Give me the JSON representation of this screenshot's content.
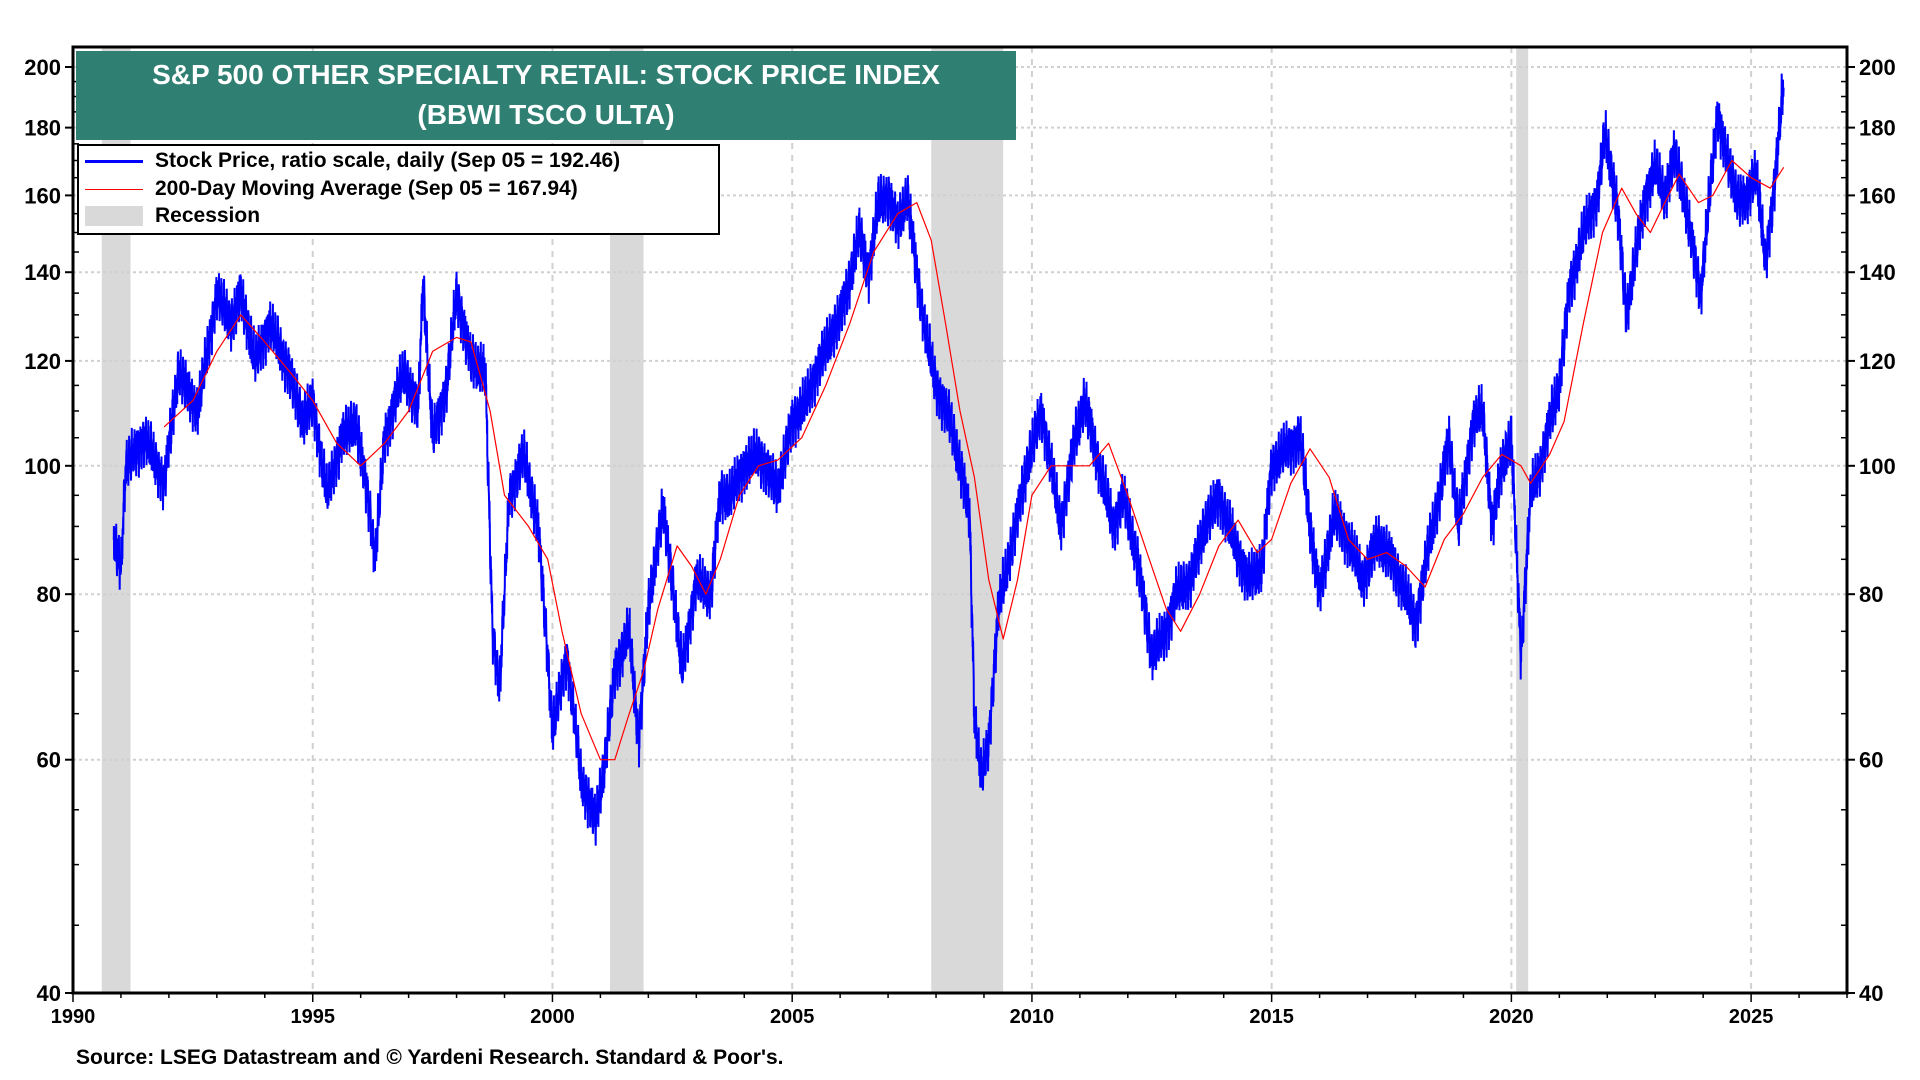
{
  "chart_data": {
    "type": "line",
    "title": "S&P 500 OTHER SPECIALTY RETAIL: STOCK PRICE INDEX",
    "subtitle": "(BBWI TSCO ULTA)",
    "y_scale": "log",
    "ylim": [
      40,
      200
    ],
    "xlim": [
      1990,
      2027
    ],
    "y_ticks": [
      40,
      60,
      80,
      100,
      120,
      140,
      160,
      180,
      200
    ],
    "x_ticks": [
      1990,
      1995,
      2000,
      2005,
      2010,
      2015,
      2020,
      2025
    ],
    "grid": true,
    "legend_position": "top-left",
    "legend": [
      {
        "label": "Stock Price, ratio scale, daily (Sep 05 = 192.46)",
        "color": "#0000ff"
      },
      {
        "label": "200-Day Moving Average (Sep 05 = 167.94)",
        "color": "#ff0000"
      },
      {
        "label": "Recession",
        "color": "#d9d9d9"
      }
    ],
    "recessions": [
      [
        1990.6,
        1991.2
      ],
      [
        2001.2,
        2001.9
      ],
      [
        2007.9,
        2009.4
      ],
      [
        2020.1,
        2020.35
      ]
    ],
    "series": [
      {
        "name": "Stock Price",
        "color": "#0000ff",
        "points": [
          [
            1990.85,
            88
          ],
          [
            1991.0,
            84
          ],
          [
            1991.1,
            100
          ],
          [
            1991.5,
            105
          ],
          [
            1991.9,
            97
          ],
          [
            1992.2,
            118
          ],
          [
            1992.6,
            110
          ],
          [
            1993.0,
            135
          ],
          [
            1993.3,
            128
          ],
          [
            1993.5,
            135
          ],
          [
            1993.8,
            120
          ],
          [
            1994.1,
            128
          ],
          [
            1994.5,
            118
          ],
          [
            1994.8,
            108
          ],
          [
            1995.0,
            112
          ],
          [
            1995.3,
            95
          ],
          [
            1995.6,
            105
          ],
          [
            1995.9,
            108
          ],
          [
            1996.2,
            92
          ],
          [
            1996.3,
            85
          ],
          [
            1996.5,
            105
          ],
          [
            1996.9,
            118
          ],
          [
            1997.2,
            110
          ],
          [
            1997.3,
            138
          ],
          [
            1997.5,
            105
          ],
          [
            1997.8,
            115
          ],
          [
            1998.0,
            135
          ],
          [
            1998.3,
            120
          ],
          [
            1998.6,
            118
          ],
          [
            1998.75,
            75
          ],
          [
            1998.9,
            68
          ],
          [
            1999.1,
            95
          ],
          [
            1999.4,
            102
          ],
          [
            1999.7,
            90
          ],
          [
            1999.9,
            72
          ],
          [
            2000.0,
            63
          ],
          [
            2000.3,
            72
          ],
          [
            2000.6,
            58
          ],
          [
            2000.9,
            54
          ],
          [
            2001.1,
            60
          ],
          [
            2001.3,
            70
          ],
          [
            2001.6,
            75
          ],
          [
            2001.8,
            62
          ],
          [
            2002.0,
            78
          ],
          [
            2002.3,
            93
          ],
          [
            2002.5,
            82
          ],
          [
            2002.7,
            70
          ],
          [
            2003.0,
            82
          ],
          [
            2003.3,
            80
          ],
          [
            2003.5,
            95
          ],
          [
            2003.7,
            95
          ],
          [
            2004.0,
            100
          ],
          [
            2004.3,
            102
          ],
          [
            2004.7,
            96
          ],
          [
            2005.0,
            108
          ],
          [
            2005.3,
            112
          ],
          [
            2005.5,
            118
          ],
          [
            2005.8,
            125
          ],
          [
            2006.0,
            130
          ],
          [
            2006.2,
            138
          ],
          [
            2006.4,
            150
          ],
          [
            2006.6,
            140
          ],
          [
            2006.8,
            158
          ],
          [
            2007.0,
            160
          ],
          [
            2007.2,
            152
          ],
          [
            2007.4,
            160
          ],
          [
            2007.6,
            140
          ],
          [
            2007.8,
            125
          ],
          [
            2008.0,
            115
          ],
          [
            2008.3,
            108
          ],
          [
            2008.5,
            100
          ],
          [
            2008.7,
            92
          ],
          [
            2008.8,
            65
          ],
          [
            2008.95,
            58
          ],
          [
            2009.1,
            62
          ],
          [
            2009.3,
            78
          ],
          [
            2009.6,
            88
          ],
          [
            2009.9,
            100
          ],
          [
            2010.2,
            110
          ],
          [
            2010.4,
            100
          ],
          [
            2010.6,
            90
          ],
          [
            2010.9,
            105
          ],
          [
            2011.1,
            112
          ],
          [
            2011.4,
            100
          ],
          [
            2011.7,
            90
          ],
          [
            2011.9,
            95
          ],
          [
            2012.2,
            85
          ],
          [
            2012.5,
            72
          ],
          [
            2012.8,
            75
          ],
          [
            2013.0,
            80
          ],
          [
            2013.3,
            82
          ],
          [
            2013.6,
            90
          ],
          [
            2013.9,
            95
          ],
          [
            2014.2,
            88
          ],
          [
            2014.5,
            82
          ],
          [
            2014.8,
            84
          ],
          [
            2015.0,
            100
          ],
          [
            2015.3,
            103
          ],
          [
            2015.6,
            105
          ],
          [
            2015.8,
            90
          ],
          [
            2016.0,
            80
          ],
          [
            2016.3,
            92
          ],
          [
            2016.6,
            88
          ],
          [
            2016.9,
            82
          ],
          [
            2017.2,
            88
          ],
          [
            2017.5,
            85
          ],
          [
            2017.8,
            80
          ],
          [
            2018.0,
            76
          ],
          [
            2018.3,
            88
          ],
          [
            2018.5,
            95
          ],
          [
            2018.7,
            105
          ],
          [
            2018.9,
            90
          ],
          [
            2019.2,
            108
          ],
          [
            2019.4,
            110
          ],
          [
            2019.6,
            90
          ],
          [
            2019.8,
            100
          ],
          [
            2020.0,
            105
          ],
          [
            2020.2,
            72
          ],
          [
            2020.4,
            95
          ],
          [
            2020.6,
            100
          ],
          [
            2020.8,
            108
          ],
          [
            2021.0,
            115
          ],
          [
            2021.2,
            135
          ],
          [
            2021.5,
            150
          ],
          [
            2021.8,
            160
          ],
          [
            2021.95,
            178
          ],
          [
            2022.2,
            158
          ],
          [
            2022.4,
            130
          ],
          [
            2022.6,
            145
          ],
          [
            2022.8,
            160
          ],
          [
            2023.0,
            168
          ],
          [
            2023.2,
            160
          ],
          [
            2023.4,
            172
          ],
          [
            2023.6,
            160
          ],
          [
            2023.8,
            145
          ],
          [
            2023.95,
            135
          ],
          [
            2024.1,
            155
          ],
          [
            2024.3,
            185
          ],
          [
            2024.5,
            170
          ],
          [
            2024.7,
            160
          ],
          [
            2024.9,
            158
          ],
          [
            2025.1,
            168
          ],
          [
            2025.3,
            142
          ],
          [
            2025.5,
            165
          ],
          [
            2025.68,
            195
          ]
        ]
      },
      {
        "name": "200-Day Moving Average",
        "color": "#ff0000",
        "points": [
          [
            1991.9,
            107
          ],
          [
            1992.5,
            112
          ],
          [
            1993.0,
            122
          ],
          [
            1993.5,
            130
          ],
          [
            1994.0,
            124
          ],
          [
            1994.5,
            118
          ],
          [
            1995.0,
            112
          ],
          [
            1995.5,
            104
          ],
          [
            1996.0,
            100
          ],
          [
            1996.5,
            104
          ],
          [
            1997.0,
            110
          ],
          [
            1997.5,
            122
          ],
          [
            1998.0,
            125
          ],
          [
            1998.3,
            124
          ],
          [
            1998.7,
            110
          ],
          [
            1999.0,
            95
          ],
          [
            1999.5,
            90
          ],
          [
            1999.9,
            85
          ],
          [
            2000.2,
            75
          ],
          [
            2000.6,
            65
          ],
          [
            2001.0,
            60
          ],
          [
            2001.3,
            60
          ],
          [
            2001.6,
            65
          ],
          [
            2001.9,
            70
          ],
          [
            2002.2,
            78
          ],
          [
            2002.6,
            87
          ],
          [
            2002.9,
            84
          ],
          [
            2003.2,
            80
          ],
          [
            2003.5,
            85
          ],
          [
            2003.9,
            95
          ],
          [
            2004.3,
            100
          ],
          [
            2004.7,
            101
          ],
          [
            2005.2,
            105
          ],
          [
            2005.7,
            115
          ],
          [
            2006.2,
            128
          ],
          [
            2006.7,
            145
          ],
          [
            2007.2,
            155
          ],
          [
            2007.6,
            158
          ],
          [
            2007.9,
            148
          ],
          [
            2008.2,
            128
          ],
          [
            2008.5,
            110
          ],
          [
            2008.8,
            98
          ],
          [
            2009.1,
            82
          ],
          [
            2009.4,
            74
          ],
          [
            2009.7,
            82
          ],
          [
            2010.0,
            95
          ],
          [
            2010.4,
            100
          ],
          [
            2010.8,
            100
          ],
          [
            2011.2,
            100
          ],
          [
            2011.6,
            104
          ],
          [
            2012.0,
            95
          ],
          [
            2012.4,
            86
          ],
          [
            2012.8,
            78
          ],
          [
            2013.1,
            75
          ],
          [
            2013.5,
            80
          ],
          [
            2013.9,
            87
          ],
          [
            2014.3,
            91
          ],
          [
            2014.7,
            86
          ],
          [
            2015.0,
            88
          ],
          [
            2015.4,
            97
          ],
          [
            2015.8,
            103
          ],
          [
            2016.2,
            98
          ],
          [
            2016.6,
            88
          ],
          [
            2017.0,
            85
          ],
          [
            2017.4,
            86
          ],
          [
            2017.8,
            84
          ],
          [
            2018.2,
            81
          ],
          [
            2018.6,
            88
          ],
          [
            2019.0,
            92
          ],
          [
            2019.4,
            98
          ],
          [
            2019.8,
            102
          ],
          [
            2020.2,
            100
          ],
          [
            2020.4,
            97
          ],
          [
            2020.8,
            102
          ],
          [
            2021.1,
            108
          ],
          [
            2021.5,
            128
          ],
          [
            2021.9,
            150
          ],
          [
            2022.3,
            162
          ],
          [
            2022.6,
            155
          ],
          [
            2022.9,
            150
          ],
          [
            2023.2,
            158
          ],
          [
            2023.5,
            166
          ],
          [
            2023.9,
            158
          ],
          [
            2024.2,
            160
          ],
          [
            2024.6,
            170
          ],
          [
            2025.0,
            165
          ],
          [
            2025.4,
            162
          ],
          [
            2025.68,
            168
          ]
        ]
      }
    ],
    "source": "Source: LSEG Datastream and © Yardeni Research. Standard & Poor's."
  }
}
